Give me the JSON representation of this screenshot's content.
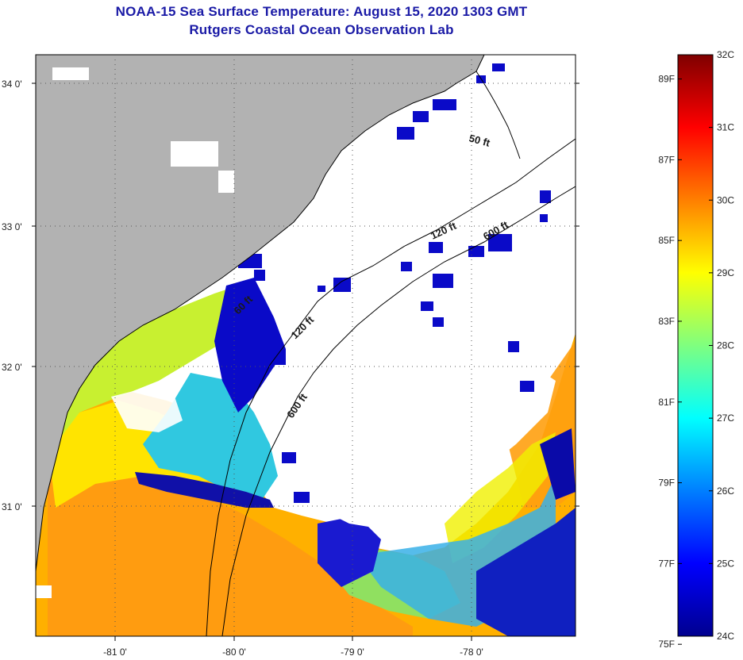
{
  "header": {
    "title": "NOAA-15 Sea Surface Temperature:  August 15, 2020 1303 GMT",
    "subtitle": "Rutgers Coastal Ocean Observation Lab"
  },
  "map": {
    "lon_ticks": [
      "-81 0'",
      "-80 0'",
      "-79 0'",
      "-78 0'"
    ],
    "lat_ticks": [
      "34 0'",
      "33 0'",
      "32 0'",
      "31 0'"
    ],
    "contour_labels": {
      "c50": "50 ft",
      "c120a": "120 ft",
      "c120b": "120 ft",
      "c600a": "600 ft",
      "c600b": "600 ft",
      "c60": "60 ft"
    },
    "colors": {
      "land": "#b2b2b2",
      "cloud": "#ffffff",
      "frame": "#000000"
    }
  },
  "colorbar": {
    "celsius": [
      "32C",
      "31C",
      "30C",
      "29C",
      "28C",
      "27C",
      "26C",
      "25C",
      "24C"
    ],
    "fahrenheit": [
      "89F",
      "87F",
      "85F",
      "83F",
      "81F",
      "79F",
      "77F",
      "75F"
    ],
    "colors": [
      "#00008f",
      "#0000ff",
      "#007fff",
      "#00ffff",
      "#7fff7f",
      "#ffff00",
      "#ff7f00",
      "#ff0000",
      "#7f0000"
    ]
  }
}
